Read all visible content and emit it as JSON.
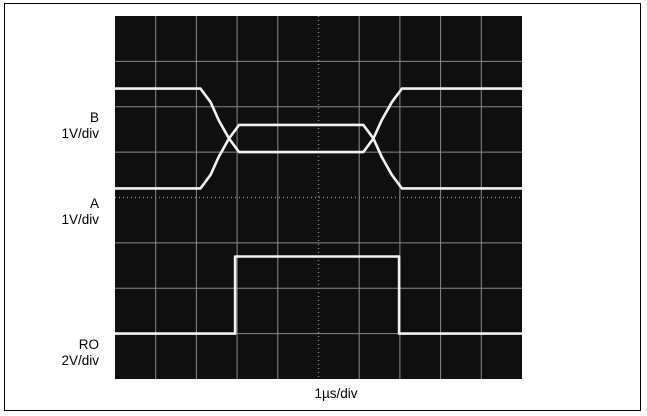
{
  "chart_data": {
    "type": "line",
    "x_label": "1µs/div",
    "divisions": {
      "x": 10,
      "y": 8
    },
    "channels": [
      {
        "label": "B",
        "scale": "1V/div"
      },
      {
        "label": "A",
        "scale": "1V/div"
      },
      {
        "label": "RO",
        "scale": "2V/div"
      }
    ],
    "x_range_div": [
      0,
      10
    ],
    "y_range_div": [
      -4,
      4
    ],
    "series": [
      {
        "name": "B",
        "x": [
          0,
          2.1,
          2.35,
          2.55,
          2.8,
          3.05,
          6.1,
          6.35,
          6.55,
          6.8,
          7.05,
          10
        ],
        "y": [
          2.4,
          2.4,
          2.1,
          1.7,
          1.3,
          1.0,
          1.0,
          1.3,
          1.7,
          2.1,
          2.4,
          2.4
        ]
      },
      {
        "name": "A",
        "x": [
          0,
          2.1,
          2.35,
          2.55,
          2.8,
          3.05,
          6.1,
          6.35,
          6.55,
          6.8,
          7.05,
          10
        ],
        "y": [
          0.2,
          0.2,
          0.5,
          0.9,
          1.3,
          1.6,
          1.6,
          1.3,
          0.9,
          0.5,
          0.2,
          0.2
        ]
      },
      {
        "name": "RO",
        "x": [
          0,
          2.95,
          2.95,
          6.98,
          6.98,
          10
        ],
        "y": [
          -3.0,
          -3.0,
          -1.3,
          -1.3,
          -3.0,
          -3.0
        ]
      }
    ]
  },
  "colors": {
    "screen": "#0f0f0f",
    "grid": "#8a8a8a",
    "trace": "#f2f2f2"
  }
}
